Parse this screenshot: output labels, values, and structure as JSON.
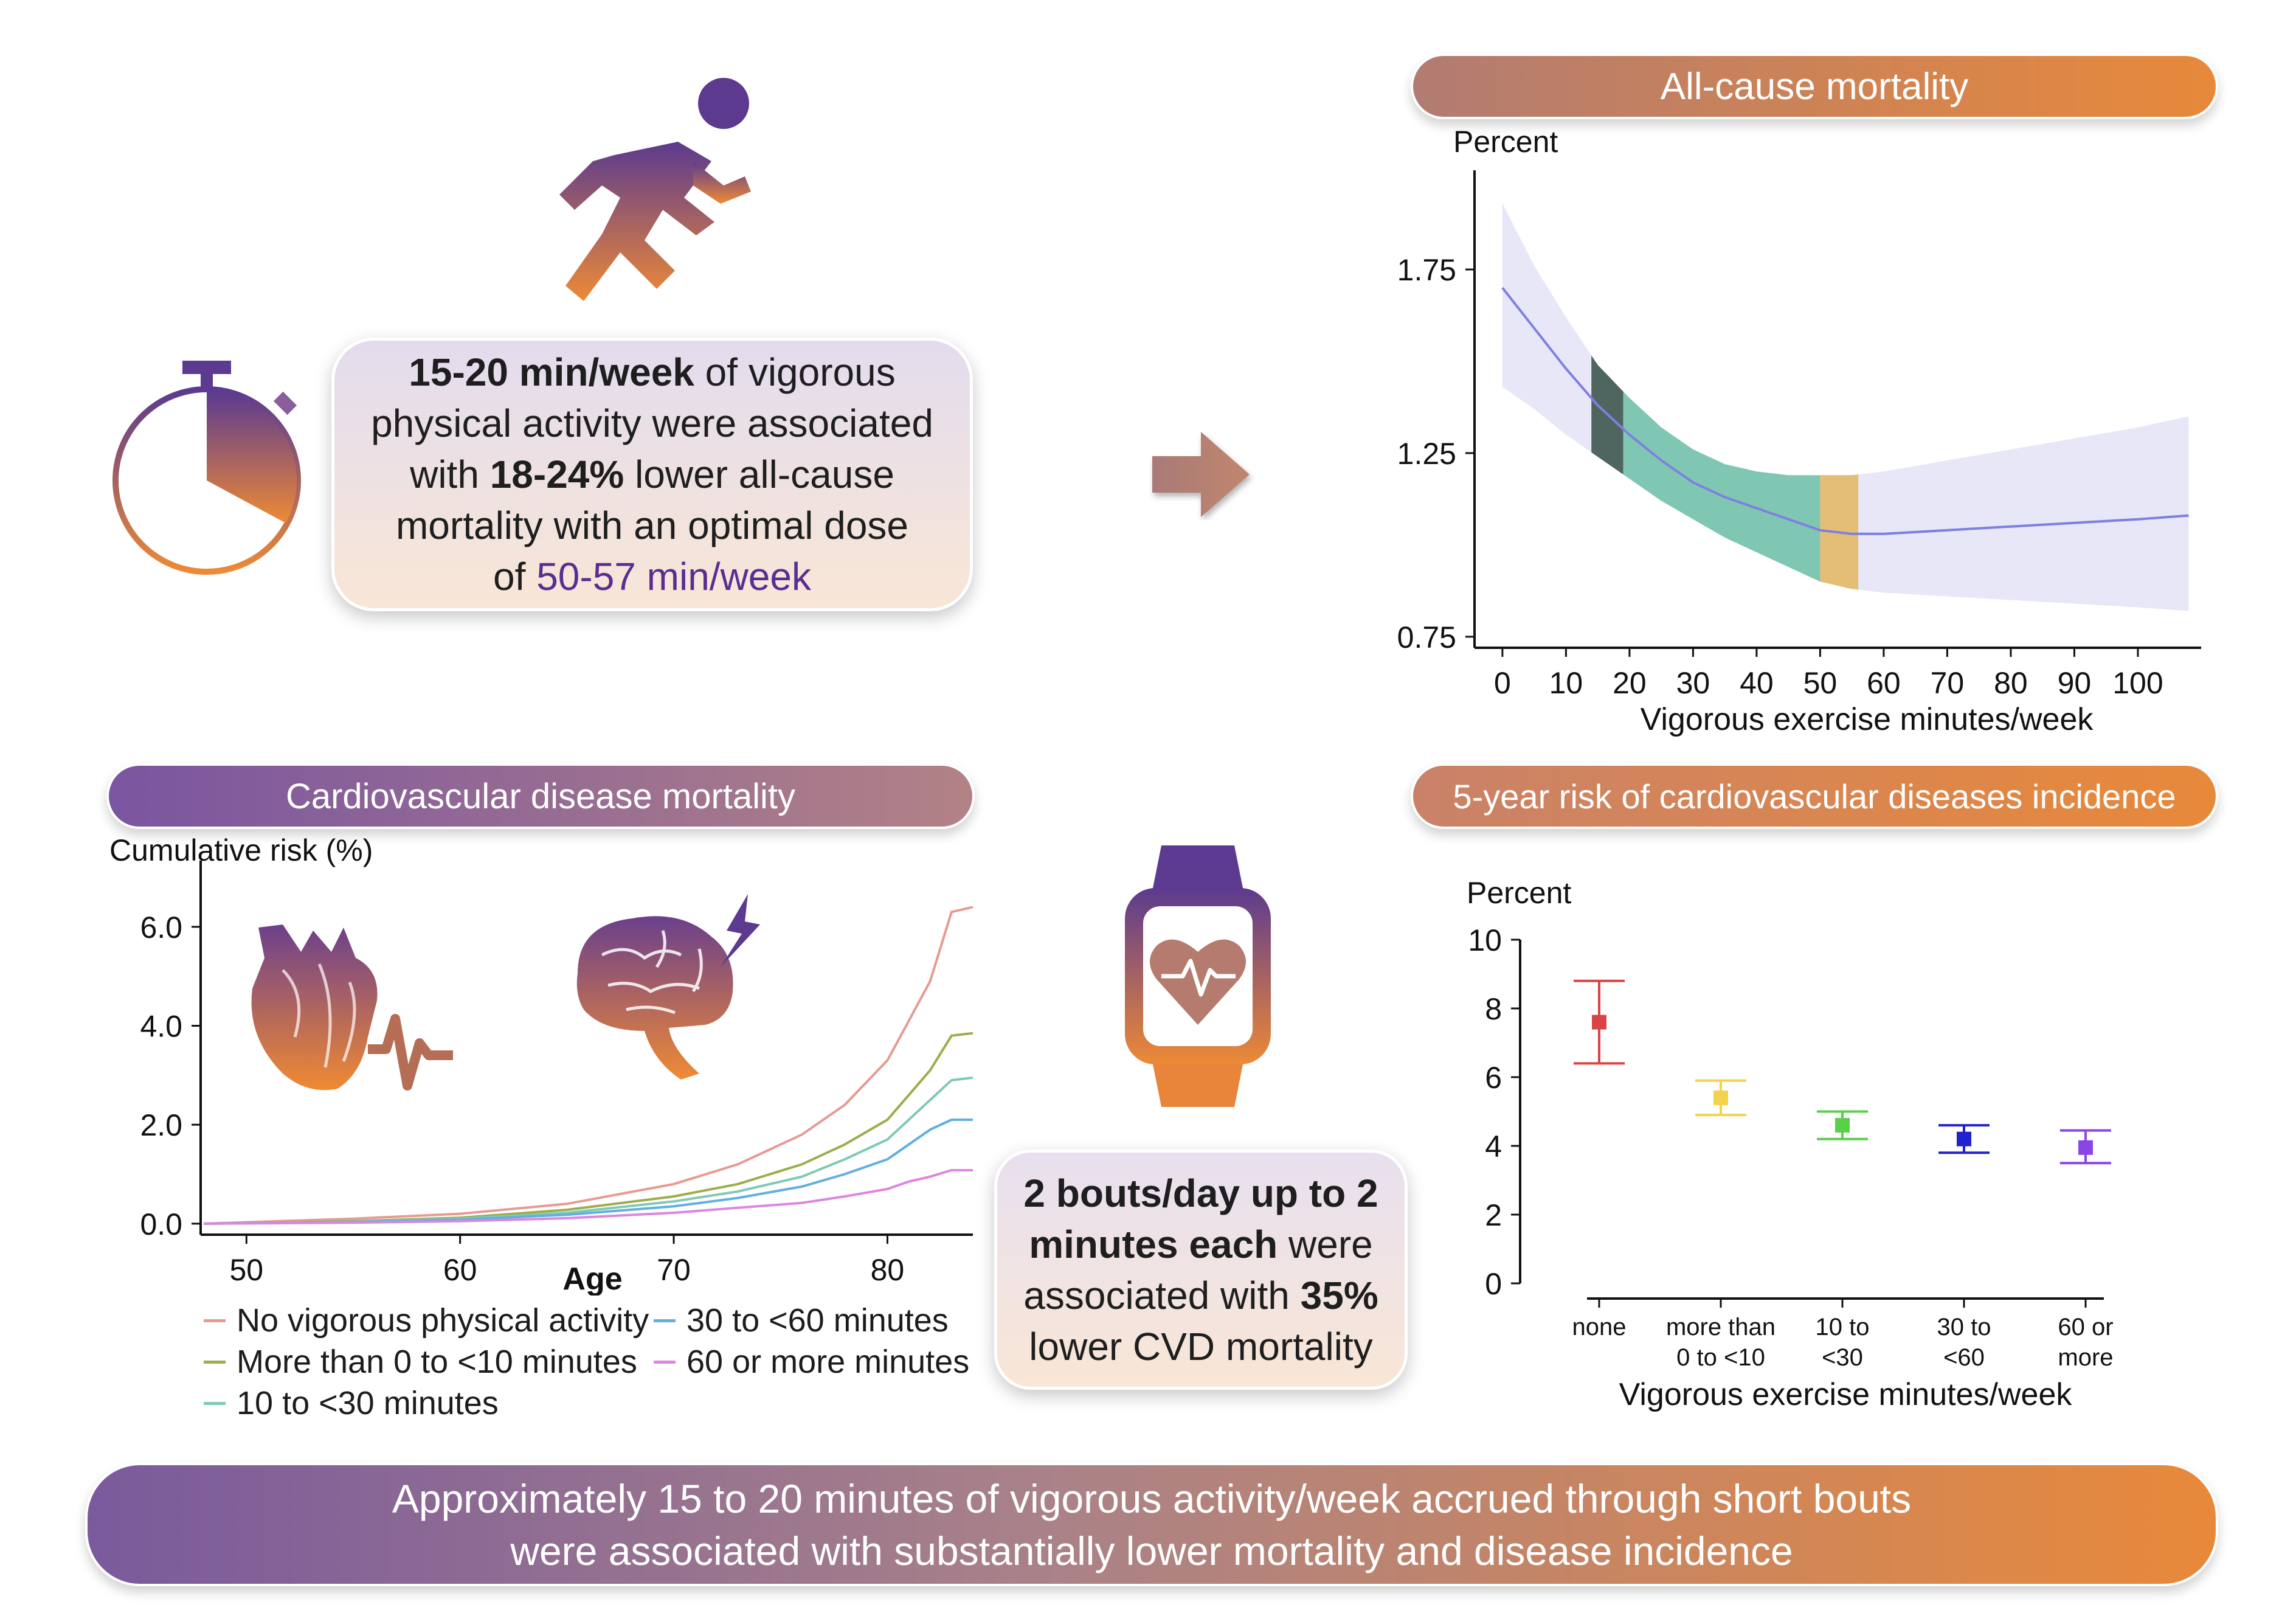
{
  "top_left_card": {
    "line1_bold": "15-20 min/week",
    "line1_rest": " of vigorous",
    "line2": "physical activity were associated",
    "line3_pre": "with ",
    "line3_bold": "18-24%",
    "line3_rest": " lower all-cause",
    "line4": "mortality with an optimal dose",
    "line5_pre": "of ",
    "line5_purple": "50-57 min/week"
  },
  "middle_card": {
    "line1_bold": "2 bouts/day up to 2",
    "line2_bold": "minutes each",
    "line2_rest": " were",
    "line3_pre": "associated with ",
    "line3_bold": "35%",
    "line4": "lower CVD mortality"
  },
  "bottom_banner": {
    "line1": "Approximately 15 to 20 minutes of vigorous activity/week accrued through short bouts",
    "line2": "were associated with substantially lower mortality and disease incidence"
  },
  "icons": [
    "runner-icon",
    "stopwatch-icon",
    "arrow-right-icon",
    "heart-anatomy-icon",
    "brain-icon",
    "smartwatch-icon"
  ],
  "colors": {
    "purple": "#6f4a97",
    "orange": "#e8893a",
    "purple_text": "#5a2d91"
  },
  "chart_data": [
    {
      "type": "line",
      "title": "All-cause mortality",
      "ylabel": "Percent",
      "xlabel": "Vigorous exercise minutes/week",
      "x_ticks": [
        0,
        10,
        20,
        30,
        40,
        50,
        60,
        70,
        80,
        90,
        100
      ],
      "y_ticks": [
        "0.75",
        "1.25",
        "1.75"
      ],
      "xlim": [
        -2,
        109
      ],
      "ylim": [
        0.72,
        2.02
      ],
      "series": [
        {
          "x": [
            0,
            5,
            10,
            15,
            20,
            25,
            30,
            35,
            40,
            45,
            50,
            55,
            60,
            70,
            80,
            90,
            100,
            108
          ],
          "y": [
            1.7,
            1.59,
            1.48,
            1.38,
            1.3,
            1.23,
            1.17,
            1.13,
            1.1,
            1.07,
            1.04,
            1.03,
            1.03,
            1.04,
            1.05,
            1.06,
            1.07,
            1.08
          ]
        }
      ],
      "ci_upper": [
        1.93,
        1.76,
        1.62,
        1.49,
        1.4,
        1.32,
        1.26,
        1.22,
        1.2,
        1.19,
        1.19,
        1.19,
        1.2,
        1.23,
        1.26,
        1.29,
        1.32,
        1.35
      ],
      "ci_lower": [
        1.43,
        1.37,
        1.3,
        1.24,
        1.18,
        1.12,
        1.07,
        1.02,
        0.98,
        0.94,
        0.9,
        0.88,
        0.87,
        0.86,
        0.85,
        0.84,
        0.83,
        0.82
      ],
      "highlight_bands": [
        {
          "from": 14,
          "to": 19,
          "color": "#4f6660"
        },
        {
          "from": 19,
          "to": 50,
          "color": "#7fc7b2"
        },
        {
          "from": 50,
          "to": 56,
          "color": "#e3be74"
        }
      ],
      "grid": false
    },
    {
      "type": "line",
      "title": "Cardiovascular disease mortality",
      "ylabel": "Cumulative risk (%)",
      "xlabel": "Age",
      "x_ticks": [
        50,
        60,
        70,
        80
      ],
      "y_ticks": [
        "0.0",
        "2.0",
        "4.0",
        "6.0"
      ],
      "xlim": [
        48,
        84
      ],
      "ylim": [
        -0.1,
        6.6
      ],
      "legend_position": "bottom",
      "series": [
        {
          "name": "No vigorous physical activity",
          "color": "#e79a92",
          "x": [
            48,
            55,
            60,
            65,
            70,
            73,
            76,
            78,
            80,
            81,
            82,
            83,
            84
          ],
          "y": [
            0.0,
            0.1,
            0.2,
            0.4,
            0.8,
            1.2,
            1.8,
            2.4,
            3.3,
            4.1,
            4.9,
            6.3,
            6.4
          ]
        },
        {
          "name": "More than 0 to <10 minutes",
          "color": "#9bae4c",
          "x": [
            48,
            55,
            60,
            65,
            70,
            73,
            76,
            78,
            80,
            81,
            82,
            83,
            84
          ],
          "y": [
            0.0,
            0.05,
            0.12,
            0.28,
            0.55,
            0.8,
            1.2,
            1.6,
            2.1,
            2.6,
            3.1,
            3.8,
            3.85
          ]
        },
        {
          "name": "10 to <30 minutes",
          "color": "#7fc9b5",
          "x": [
            48,
            55,
            60,
            65,
            70,
            73,
            76,
            78,
            80,
            81,
            82,
            83,
            84
          ],
          "y": [
            0.0,
            0.04,
            0.1,
            0.22,
            0.45,
            0.65,
            0.95,
            1.3,
            1.7,
            2.1,
            2.5,
            2.9,
            2.95
          ]
        },
        {
          "name": "30 to <60 minutes",
          "color": "#62afe0",
          "x": [
            48,
            55,
            60,
            65,
            70,
            73,
            76,
            78,
            80,
            81,
            82,
            83,
            84
          ],
          "y": [
            0.0,
            0.03,
            0.08,
            0.18,
            0.35,
            0.52,
            0.75,
            1.0,
            1.3,
            1.6,
            1.9,
            2.1,
            2.1
          ]
        },
        {
          "name": "60 or more minutes",
          "color": "#dd86e0",
          "x": [
            48,
            55,
            60,
            65,
            70,
            73,
            76,
            78,
            80,
            81,
            82,
            83,
            84
          ],
          "y": [
            0.0,
            0.02,
            0.05,
            0.11,
            0.22,
            0.32,
            0.42,
            0.55,
            0.7,
            0.85,
            0.95,
            1.08,
            1.08
          ]
        }
      ]
    },
    {
      "type": "scatter",
      "title": "5-year risk of cardiovascular diseases incidence",
      "ylabel": "Percent",
      "xlabel": "Vigorous exercise minutes/week",
      "categories": [
        [
          "none"
        ],
        [
          "more than",
          "0 to <10"
        ],
        [
          "10 to",
          "<30"
        ],
        [
          "30 to",
          "<60"
        ],
        [
          "60 or",
          "more"
        ]
      ],
      "y_ticks": [
        "0",
        "2",
        "4",
        "6",
        "8",
        "10"
      ],
      "ylim": [
        0,
        10
      ],
      "points": [
        {
          "value": 7.6,
          "lower": 6.4,
          "upper": 8.8,
          "color": "#d94545"
        },
        {
          "value": 5.4,
          "lower": 4.9,
          "upper": 5.9,
          "color": "#f2d34b"
        },
        {
          "value": 4.6,
          "lower": 4.2,
          "upper": 5.0,
          "color": "#58d048"
        },
        {
          "value": 4.2,
          "lower": 3.8,
          "upper": 4.6,
          "color": "#2222cc"
        },
        {
          "value": 3.95,
          "lower": 3.5,
          "upper": 4.45,
          "color": "#8a45e6"
        }
      ]
    }
  ]
}
